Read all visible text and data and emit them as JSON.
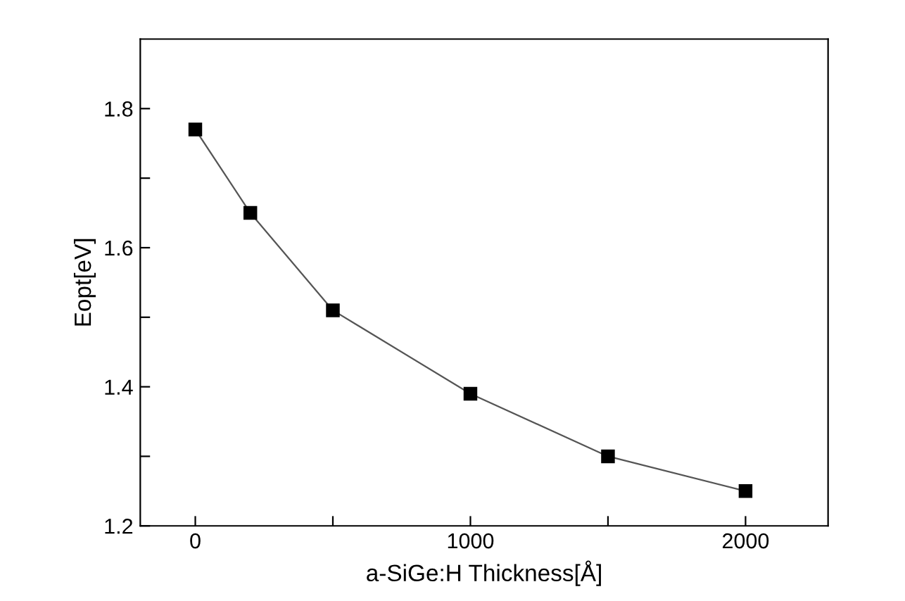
{
  "chart_data": {
    "type": "line",
    "xlabel": "a-SiGe:H Thickness[Å]",
    "ylabel": "Eopt[eV]",
    "x": [
      0,
      200,
      500,
      1000,
      1500,
      2000
    ],
    "series": [
      {
        "color": "#555555",
        "values": [
          1.77,
          1.65,
          1.51,
          1.39,
          1.3,
          1.25
        ]
      }
    ],
    "marker": "square",
    "line_style": "solid",
    "grid": false,
    "legend": false,
    "xlim": [
      -200,
      2300
    ],
    "xticks": [
      0,
      {
        "value": 500,
        "label": null
      },
      1000,
      {
        "value": 1500,
        "label": null
      },
      2000
    ],
    "ylim": [
      1.2,
      1.9
    ],
    "yticks": [
      1.2,
      {
        "value": 1.3,
        "label": null
      },
      1.4,
      {
        "value": 1.5,
        "label": null
      },
      1.6,
      {
        "value": 1.7,
        "label": null
      },
      1.8
    ]
  }
}
